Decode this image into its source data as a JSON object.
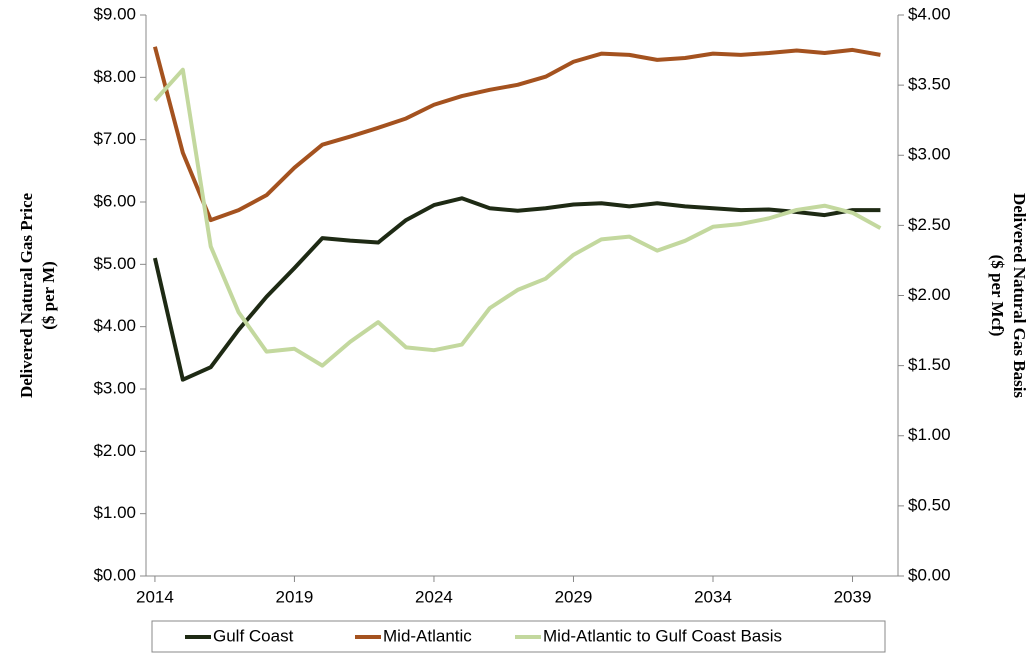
{
  "chart_data": {
    "type": "line",
    "ylabel": [
      "Delivered Natural Gas Price",
      "($ per M)"
    ],
    "y2label": [
      "Delivered Natural Gas Basis",
      "($ per Mcf)"
    ],
    "x": [
      2014,
      2015,
      2016,
      2017,
      2018,
      2019,
      2020,
      2021,
      2022,
      2023,
      2024,
      2025,
      2026,
      2027,
      2028,
      2029,
      2030,
      2031,
      2032,
      2033,
      2034,
      2035,
      2036,
      2037,
      2038,
      2039,
      2040
    ],
    "xlim": [
      2013.68,
      2040.63
    ],
    "xticks": [
      2014,
      2019,
      2024,
      2029,
      2034,
      2039
    ],
    "ylim": [
      0,
      9
    ],
    "yticks": [
      {
        "value": 0,
        "label": "$0.00"
      },
      {
        "value": 1,
        "label": "$1.00"
      },
      {
        "value": 2,
        "label": "$2.00"
      },
      {
        "value": 3,
        "label": "$3.00"
      },
      {
        "value": 4,
        "label": "$4.00"
      },
      {
        "value": 5,
        "label": "$5.00"
      },
      {
        "value": 6,
        "label": "$6.00"
      },
      {
        "value": 7,
        "label": "$7.00"
      },
      {
        "value": 8,
        "label": "$8.00"
      },
      {
        "value": 9,
        "label": "$9.00"
      }
    ],
    "y2lim": [
      0,
      4
    ],
    "y2ticks": [
      {
        "value": 0,
        "label": "$0.00"
      },
      {
        "value": 0.5,
        "label": "$0.50"
      },
      {
        "value": 1,
        "label": "$1.00"
      },
      {
        "value": 1.5,
        "label": "$1.50"
      },
      {
        "value": 2,
        "label": "$2.00"
      },
      {
        "value": 2.5,
        "label": "$2.50"
      },
      {
        "value": 3,
        "label": "$3.00"
      },
      {
        "value": 3.5,
        "label": "$3.50"
      },
      {
        "value": 4,
        "label": "$4.00"
      }
    ],
    "legend": "bottom",
    "series": [
      {
        "name": "Gulf Coast",
        "color": "#1e2a14",
        "values": [
          5.1,
          3.15,
          3.35,
          3.95,
          4.48,
          4.94,
          5.42,
          5.38,
          5.35,
          5.71,
          5.95,
          6.06,
          5.9,
          5.86,
          5.9,
          5.96,
          5.98,
          5.93,
          5.98,
          5.93,
          5.9,
          5.87,
          5.88,
          5.84,
          5.79,
          5.87,
          5.87
        ]
      },
      {
        "name": "Mid-Atlantic",
        "color": "#a4521f",
        "values": [
          8.49,
          6.79,
          5.71,
          5.87,
          6.11,
          6.55,
          6.92,
          7.05,
          7.19,
          7.34,
          7.56,
          7.7,
          7.8,
          7.88,
          8.01,
          8.25,
          8.38,
          8.36,
          8.28,
          8.31,
          8.38,
          8.36,
          8.39,
          8.43,
          8.39,
          8.44,
          8.36
        ]
      },
      {
        "name": "Mid-Atlantic to Gulf Coast Basis",
        "color": "#c3d89e",
        "axis": "y2",
        "values": [
          3.39,
          3.61,
          2.35,
          1.88,
          1.6,
          1.62,
          1.5,
          1.67,
          1.81,
          1.63,
          1.61,
          1.65,
          1.91,
          2.04,
          2.12,
          2.29,
          2.4,
          2.42,
          2.32,
          2.39,
          2.49,
          2.51,
          2.55,
          2.61,
          2.64,
          2.59,
          2.48
        ]
      }
    ]
  }
}
